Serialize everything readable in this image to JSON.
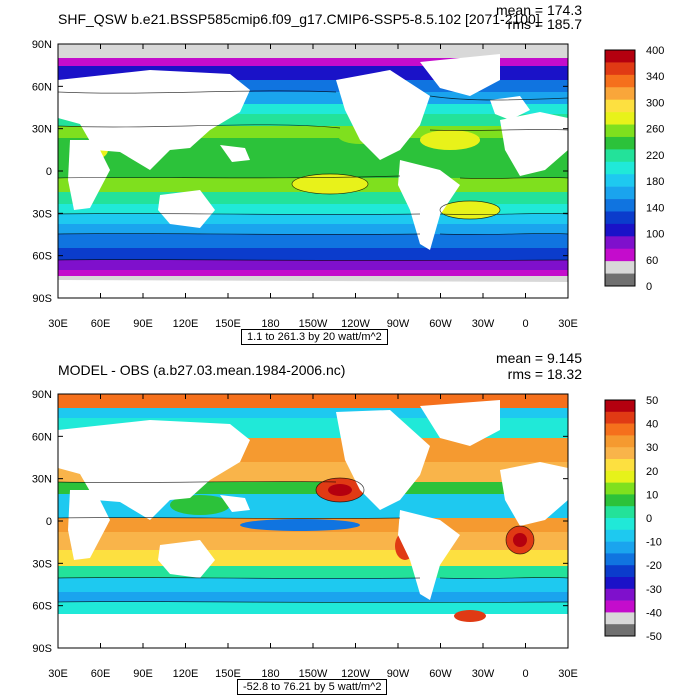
{
  "panels": [
    {
      "title": "SHF_QSW b.e21.BSSP585cmip6.f09_g17.CMIP6-SSP5-8.5.102 [2071-2100]",
      "stats": {
        "mean": "mean = 174.3",
        "rms": "rms = 185.7"
      },
      "footer": "1.1 to 261.3 by 20 watt/m^2",
      "lat_labels": [
        "90N",
        "60N",
        "30N",
        "0",
        "30S",
        "60S",
        "90S"
      ],
      "lon_labels": [
        "30E",
        "60E",
        "90E",
        "120E",
        "150E",
        "180",
        "150W",
        "120W",
        "90W",
        "60W",
        "30W",
        "0",
        "30E"
      ],
      "colorbar": {
        "labels": [
          "400",
          "340",
          "300",
          "260",
          "220",
          "180",
          "140",
          "100",
          "60",
          "0"
        ],
        "colors": [
          "#b4000f",
          "#e03a14",
          "#f5701c",
          "#f9a63a",
          "#fde040",
          "#e8f21a",
          "#7fe01e",
          "#2cc23a",
          "#23e29a",
          "#20e9d8",
          "#1ec9f0",
          "#1aa4ee",
          "#1074e0",
          "#0b3ccc",
          "#1a12c8",
          "#7f10cc",
          "#c40ccc",
          "#d8d8d8",
          "#707070"
        ]
      }
    },
    {
      "title": "MODEL - OBS (a.b27.03.mean.1984-2006.nc)",
      "stats": {
        "mean": "mean = 9.145",
        "rms": "rms = 18.32"
      },
      "footer": "-52.8 to 76.21 by 5 watt/m^2",
      "lat_labels": [
        "90N",
        "60N",
        "30N",
        "0",
        "30S",
        "60S",
        "90S"
      ],
      "lon_labels": [
        "30E",
        "60E",
        "90E",
        "120E",
        "150E",
        "180",
        "150W",
        "120W",
        "90W",
        "60W",
        "30W",
        "0",
        "30E"
      ],
      "colorbar": {
        "labels": [
          "50",
          "40",
          "30",
          "20",
          "10",
          "0",
          "-10",
          "-20",
          "-30",
          "-40",
          "-50"
        ],
        "colors": [
          "#b4000f",
          "#e03a14",
          "#f5701c",
          "#f59a30",
          "#f9b44a",
          "#fde040",
          "#e6f21a",
          "#7fe01e",
          "#2cc23a",
          "#23e29a",
          "#20e9d8",
          "#1ec9f0",
          "#1aa4ee",
          "#1074e0",
          "#0b3ccc",
          "#1a12c8",
          "#7f10cc",
          "#c40ccc",
          "#d8d8d8",
          "#707070"
        ]
      }
    }
  ]
}
